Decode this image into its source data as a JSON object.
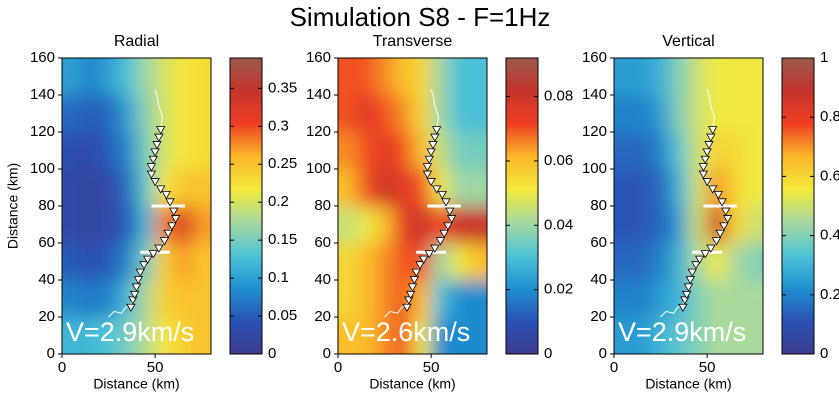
{
  "title": "Simulation S8 - F=1Hz",
  "chart_data": [
    {
      "type": "heatmap",
      "title": "Radial",
      "xlabel": "Distance (km)",
      "ylabel": "Distance (km)",
      "annotation": "V=2.9km/s",
      "xlim": [
        0,
        80
      ],
      "xticks": [
        0,
        50
      ],
      "ylim": [
        0,
        160
      ],
      "yticks": [
        0,
        20,
        40,
        60,
        80,
        100,
        120,
        140,
        160
      ],
      "clim": [
        0,
        0.39
      ],
      "cticks": [
        0,
        0.05,
        0.1,
        0.15,
        0.2,
        0.25,
        0.3,
        0.35
      ],
      "colormap": [
        "#3d3c8e",
        "#2a52b4",
        "#1f8fd0",
        "#4ec3d6",
        "#a6d9a0",
        "#f3ea3c",
        "#fbb829",
        "#ef3f23",
        "#c4342b",
        "#9a5a4c"
      ],
      "x": [
        5,
        15,
        25,
        35,
        45,
        55,
        65,
        75
      ],
      "y": [
        10,
        30,
        50,
        70,
        90,
        110,
        130,
        150
      ],
      "z": [
        [
          0.12,
          0.12,
          0.13,
          0.15,
          0.18,
          0.22,
          0.24,
          0.25
        ],
        [
          0.08,
          0.07,
          0.08,
          0.12,
          0.18,
          0.24,
          0.25,
          0.25
        ],
        [
          0.05,
          0.04,
          0.05,
          0.08,
          0.15,
          0.24,
          0.27,
          0.25
        ],
        [
          0.03,
          0.02,
          0.03,
          0.05,
          0.12,
          0.28,
          0.33,
          0.27
        ],
        [
          0.03,
          0.02,
          0.03,
          0.06,
          0.14,
          0.22,
          0.25,
          0.25
        ],
        [
          0.04,
          0.03,
          0.05,
          0.08,
          0.15,
          0.2,
          0.22,
          0.23
        ],
        [
          0.06,
          0.05,
          0.06,
          0.1,
          0.16,
          0.2,
          0.22,
          0.23
        ],
        [
          0.1,
          0.08,
          0.1,
          0.13,
          0.17,
          0.2,
          0.22,
          0.23
        ]
      ],
      "coast": {
        "x": [
          25,
          28,
          32,
          34,
          37,
          40,
          44,
          49,
          55,
          59,
          61,
          58,
          53,
          48,
          48,
          50,
          52,
          53,
          54,
          52,
          51,
          50
        ],
        "y": [
          20,
          23,
          22,
          25,
          27,
          36,
          48,
          54,
          61,
          69,
          73,
          82,
          89,
          97,
          101,
          109,
          117,
          122,
          128,
          134,
          140,
          143
        ]
      },
      "stations": {
        "x": [
          37,
          38,
          39,
          40,
          41,
          42,
          44,
          46,
          49,
          52,
          55,
          57,
          59,
          61,
          60,
          58,
          56,
          53,
          50,
          48,
          48,
          49,
          50,
          51,
          52,
          53
        ],
        "y": [
          25,
          29,
          32,
          36,
          40,
          44,
          48,
          51,
          54,
          57,
          61,
          65,
          69,
          73,
          77,
          82,
          86,
          89,
          93,
          97,
          101,
          105,
          109,
          113,
          117,
          121
        ]
      },
      "bars": [
        {
          "x": [
            48,
            66
          ],
          "y": [
            80,
            80
          ]
        },
        {
          "x": [
            42,
            58
          ],
          "y": [
            55,
            55
          ]
        }
      ]
    },
    {
      "type": "heatmap",
      "title": "Transverse",
      "xlabel": "Distance (km)",
      "annotation": "V=2.6km/s",
      "xlim": [
        0,
        80
      ],
      "xticks": [
        0,
        50
      ],
      "ylim": [
        0,
        160
      ],
      "yticks": [
        0,
        20,
        40,
        60,
        80,
        100,
        120,
        140,
        160
      ],
      "clim": [
        0,
        0.092
      ],
      "cticks": [
        0,
        0.02,
        0.04,
        0.06,
        0.08
      ],
      "colormap": [
        "#3d3c8e",
        "#2a52b4",
        "#1f8fd0",
        "#4ec3d6",
        "#a6d9a0",
        "#f3ea3c",
        "#fbb829",
        "#ef3f23",
        "#c4342b",
        "#9a5a4c"
      ],
      "x": [
        5,
        15,
        25,
        35,
        45,
        55,
        65,
        75
      ],
      "y": [
        10,
        30,
        50,
        70,
        90,
        110,
        130,
        150
      ],
      "z": [
        [
          0.06,
          0.06,
          0.065,
          0.07,
          0.05,
          0.02,
          0.02,
          0.02
        ],
        [
          0.055,
          0.06,
          0.065,
          0.07,
          0.06,
          0.03,
          0.02,
          0.02
        ],
        [
          0.055,
          0.06,
          0.065,
          0.07,
          0.07,
          0.04,
          0.05,
          0.06
        ],
        [
          0.045,
          0.05,
          0.06,
          0.075,
          0.08,
          0.07,
          0.08,
          0.08
        ],
        [
          0.06,
          0.07,
          0.08,
          0.075,
          0.07,
          0.05,
          0.04,
          0.04
        ],
        [
          0.065,
          0.07,
          0.075,
          0.07,
          0.06,
          0.045,
          0.035,
          0.035
        ],
        [
          0.07,
          0.075,
          0.07,
          0.065,
          0.055,
          0.04,
          0.03,
          0.03
        ],
        [
          0.07,
          0.07,
          0.065,
          0.06,
          0.055,
          0.04,
          0.03,
          0.03
        ]
      ],
      "coast": {
        "x": [
          25,
          28,
          32,
          34,
          37,
          40,
          44,
          49,
          55,
          59,
          61,
          58,
          53,
          48,
          48,
          50,
          52,
          53,
          54,
          52,
          51,
          50
        ],
        "y": [
          20,
          23,
          22,
          25,
          27,
          36,
          48,
          54,
          61,
          69,
          73,
          82,
          89,
          97,
          101,
          109,
          117,
          122,
          128,
          134,
          140,
          143
        ]
      },
      "stations": {
        "x": [
          37,
          38,
          39,
          40,
          41,
          42,
          44,
          46,
          49,
          52,
          55,
          57,
          59,
          61,
          60,
          58,
          56,
          53,
          50,
          48,
          48,
          49,
          50,
          51,
          52,
          53
        ],
        "y": [
          25,
          29,
          32,
          36,
          40,
          44,
          48,
          51,
          54,
          57,
          61,
          65,
          69,
          73,
          77,
          82,
          86,
          89,
          93,
          97,
          101,
          105,
          109,
          113,
          117,
          121
        ]
      },
      "bars": [
        {
          "x": [
            48,
            66
          ],
          "y": [
            80,
            80
          ]
        },
        {
          "x": [
            42,
            58
          ],
          "y": [
            55,
            55
          ]
        }
      ]
    },
    {
      "type": "heatmap",
      "title": "Vertical",
      "xlabel": "Distance (km)",
      "annotation": "V=2.9km/s",
      "xlim": [
        0,
        80
      ],
      "xticks": [
        0,
        50
      ],
      "ylim": [
        0,
        160
      ],
      "yticks": [
        0,
        20,
        40,
        60,
        80,
        100,
        120,
        140,
        160
      ],
      "clim": [
        0,
        1
      ],
      "cticks": [
        0,
        0.2,
        0.4,
        0.6,
        0.8,
        1
      ],
      "colormap": [
        "#3d3c8e",
        "#2a52b4",
        "#1f8fd0",
        "#4ec3d6",
        "#a6d9a0",
        "#f3ea3c",
        "#fbb829",
        "#ef3f23",
        "#c4342b",
        "#9a5a4c"
      ],
      "x": [
        5,
        15,
        25,
        35,
        45,
        55,
        65,
        75
      ],
      "y": [
        10,
        30,
        50,
        70,
        90,
        110,
        130,
        150
      ],
      "z": [
        [
          0.25,
          0.25,
          0.3,
          0.35,
          0.4,
          0.45,
          0.45,
          0.45
        ],
        [
          0.2,
          0.2,
          0.25,
          0.3,
          0.4,
          0.45,
          0.45,
          0.45
        ],
        [
          0.15,
          0.15,
          0.2,
          0.3,
          0.45,
          0.55,
          0.45,
          0.4
        ],
        [
          0.12,
          0.12,
          0.15,
          0.25,
          0.5,
          0.85,
          0.6,
          0.5
        ],
        [
          0.12,
          0.12,
          0.15,
          0.3,
          0.5,
          0.7,
          0.6,
          0.55
        ],
        [
          0.15,
          0.15,
          0.2,
          0.35,
          0.5,
          0.6,
          0.6,
          0.55
        ],
        [
          0.2,
          0.2,
          0.25,
          0.4,
          0.5,
          0.55,
          0.55,
          0.55
        ],
        [
          0.25,
          0.25,
          0.3,
          0.4,
          0.5,
          0.55,
          0.55,
          0.55
        ]
      ],
      "coast": {
        "x": [
          25,
          28,
          32,
          34,
          37,
          40,
          44,
          49,
          55,
          59,
          61,
          58,
          53,
          48,
          48,
          50,
          52,
          53,
          54,
          52,
          51,
          50
        ],
        "y": [
          20,
          23,
          22,
          25,
          27,
          36,
          48,
          54,
          61,
          69,
          73,
          82,
          89,
          97,
          101,
          109,
          117,
          122,
          128,
          134,
          140,
          143
        ]
      },
      "stations": {
        "x": [
          37,
          38,
          39,
          40,
          41,
          42,
          44,
          46,
          49,
          52,
          55,
          57,
          59,
          61,
          60,
          58,
          56,
          53,
          50,
          48,
          48,
          49,
          50,
          51,
          52,
          53
        ],
        "y": [
          25,
          29,
          32,
          36,
          40,
          44,
          48,
          51,
          54,
          57,
          61,
          65,
          69,
          73,
          77,
          82,
          86,
          89,
          93,
          97,
          101,
          105,
          109,
          113,
          117,
          121
        ]
      },
      "bars": [
        {
          "x": [
            48,
            66
          ],
          "y": [
            80,
            80
          ]
        },
        {
          "x": [
            42,
            58
          ],
          "y": [
            55,
            55
          ]
        }
      ]
    }
  ]
}
